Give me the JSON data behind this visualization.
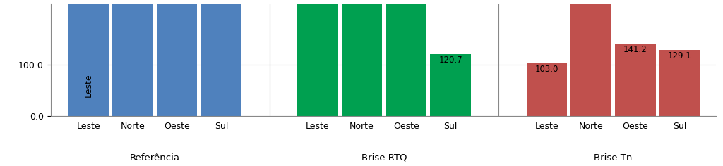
{
  "groups": [
    "Referência",
    "Brise RTQ",
    "Brise Tn"
  ],
  "subgroups": [
    "Leste",
    "Norte",
    "Oeste",
    "Sul"
  ],
  "values": {
    "Referência": [
      220,
      220,
      220,
      220
    ],
    "Brise RTQ": [
      220,
      220,
      220,
      120.7
    ],
    "Brise Tn": [
      103.0,
      220,
      141.2,
      129.1
    ]
  },
  "bar_labels": {
    "Referência": [
      null,
      null,
      null,
      null
    ],
    "Brise RTQ": [
      null,
      null,
      null,
      "120.7"
    ],
    "Brise Tn": [
      "103.0",
      null,
      "141.2",
      "129.1"
    ]
  },
  "colors": {
    "Referência": "#4F81BD",
    "Brise RTQ": "#00A050",
    "Brise Tn": "#C0504D"
  },
  "ylim": [
    0,
    220
  ],
  "yticks": [
    0.0,
    100.0
  ],
  "ytick_labels": [
    "0.0",
    "100.0"
  ],
  "leste_label": "Leste",
  "background_color": "#FFFFFF",
  "grid_color": "#C0C0C0",
  "label_fontsize": 8.5,
  "tick_fontsize": 9,
  "group_label_fontsize": 9.5
}
